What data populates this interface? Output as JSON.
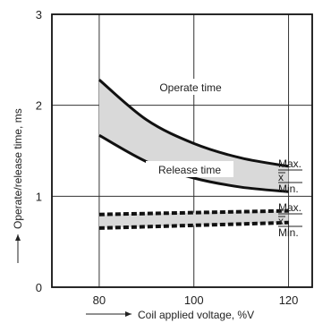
{
  "chart_data": {
    "type": "line",
    "title": "",
    "xlabel": "Coil applied voltage, %V",
    "ylabel": "Operate/release time, ms",
    "xlim": [
      70,
      125
    ],
    "ylim": [
      0,
      3
    ],
    "grid": true,
    "x_ticks": [
      "80",
      "100",
      "120"
    ],
    "y_ticks": [
      "0",
      "1",
      "2",
      "3"
    ],
    "colors": {
      "line": "#111111",
      "band": "#d9d9d9",
      "grid": "#333333"
    },
    "series": [
      {
        "name": "Operate time",
        "style": "solid",
        "upper": {
          "x": [
            80,
            90,
            100,
            110,
            120
          ],
          "y": [
            2.28,
            1.84,
            1.58,
            1.42,
            1.33
          ]
        },
        "lower": {
          "x": [
            80,
            90,
            100,
            110,
            120
          ],
          "y": [
            1.67,
            1.38,
            1.2,
            1.1,
            1.05
          ]
        }
      },
      {
        "name": "Release time",
        "style": "dashed",
        "upper": {
          "x": [
            80,
            120
          ],
          "y": [
            0.8,
            0.84
          ]
        },
        "lower": {
          "x": [
            80,
            120
          ],
          "y": [
            0.65,
            0.71
          ]
        }
      }
    ],
    "annotations": {
      "operate": "Operate time",
      "release": "Release time",
      "operate_max": "Max.",
      "operate_mean": "x",
      "operate_min": "Min.",
      "release_max": "Max.",
      "release_mean": "x",
      "release_min": "Min."
    }
  }
}
